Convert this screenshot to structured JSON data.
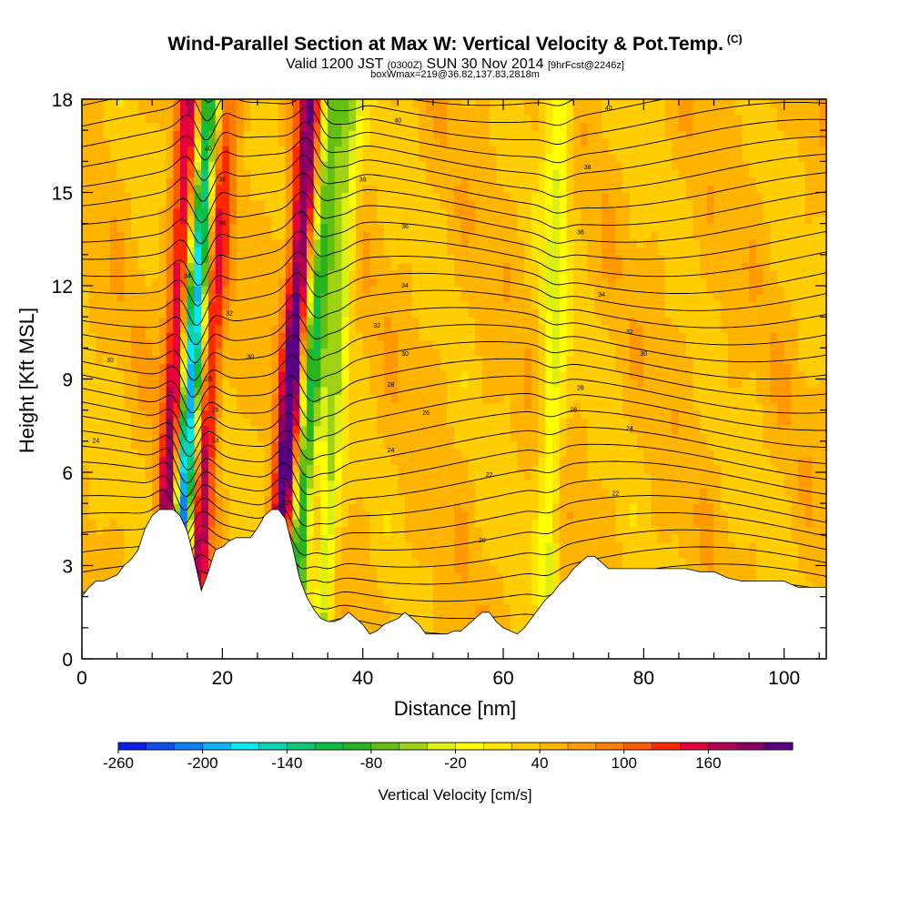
{
  "header": {
    "title": "Wind-Parallel Section at Max W: Vertical Velocity & Pot.Temp.",
    "copyright": "(C)",
    "valid_prefix": "Valid 1200 JST",
    "valid_utc": "(0300Z)",
    "valid_date": "SUN 30 Nov 2014",
    "forecast": "[9hrFcst@2246z]",
    "box_info": "boxWmax=219@36.82,137.83,2818m"
  },
  "chart_data": {
    "type": "heatmap",
    "xlabel": "Distance [nm]",
    "ylabel": "Height [Kft MSL]",
    "xlim": [
      0,
      106
    ],
    "ylim": [
      0,
      18
    ],
    "xticks": [
      0,
      20,
      40,
      60,
      80,
      100
    ],
    "yticks": [
      0,
      3,
      6,
      9,
      12,
      15,
      18
    ],
    "terrain_profile": {
      "x": [
        0,
        1,
        2,
        3,
        4,
        5,
        6,
        7,
        8,
        9,
        10,
        11,
        12,
        13,
        14,
        15,
        16,
        17,
        18,
        19,
        20,
        21,
        22,
        23,
        24,
        25,
        26,
        27,
        28,
        29,
        30,
        31,
        32,
        33,
        34,
        35,
        36,
        37,
        38,
        39,
        40,
        41,
        42,
        43,
        44,
        45,
        46,
        47,
        48,
        49,
        50,
        51,
        52,
        53,
        54,
        55,
        56,
        57,
        58,
        59,
        60,
        61,
        62,
        63,
        64,
        65,
        66,
        67,
        68,
        69,
        70,
        71,
        72,
        73,
        74,
        75,
        76,
        77,
        78,
        79,
        80,
        82,
        84,
        86,
        88,
        90,
        92,
        94,
        96,
        98,
        100,
        102,
        104,
        106
      ],
      "height": [
        2.0,
        2.3,
        2.5,
        2.5,
        2.6,
        2.7,
        3.0,
        3.2,
        3.5,
        4.2,
        4.6,
        4.8,
        4.8,
        4.8,
        4.6,
        4.1,
        3.2,
        2.2,
        2.8,
        3.5,
        3.6,
        3.8,
        3.9,
        3.9,
        3.9,
        4.2,
        4.6,
        4.8,
        4.8,
        4.5,
        3.6,
        2.6,
        2.0,
        1.6,
        1.3,
        1.2,
        1.2,
        1.3,
        1.5,
        1.3,
        1.1,
        0.8,
        0.9,
        1.1,
        1.2,
        1.3,
        1.5,
        1.3,
        1.1,
        0.8,
        0.8,
        0.8,
        0.8,
        0.9,
        0.9,
        1.1,
        1.3,
        1.5,
        1.5,
        1.2,
        1.0,
        0.9,
        0.8,
        1.0,
        1.3,
        1.6,
        1.9,
        2.1,
        2.4,
        2.6,
        2.9,
        3.1,
        3.3,
        3.3,
        3.1,
        2.9,
        2.9,
        2.9,
        2.9,
        2.9,
        2.9,
        2.9,
        2.9,
        2.9,
        2.8,
        2.8,
        2.6,
        2.5,
        2.5,
        2.5,
        2.5,
        2.3,
        2.3,
        2.3
      ],
      "units": "Kft MSL"
    },
    "vertical_velocity_plumes": [
      {
        "x_base": 11,
        "x_top": 16,
        "peak_cm_s": 160,
        "sign": "updraft"
      },
      {
        "x_base": 13,
        "x_top": 18,
        "peak_cm_s": -260,
        "sign": "downdraft"
      },
      {
        "x_base": 16,
        "x_top": 20,
        "peak_cm_s": 120,
        "sign": "updraft"
      },
      {
        "x_base": 27,
        "x_top": 33,
        "peak_cm_s": 180,
        "sign": "updraft"
      },
      {
        "x_base": 30,
        "x_top": 35,
        "peak_cm_s": -140,
        "sign": "downdraft"
      },
      {
        "x_base": 34,
        "x_top": 38,
        "peak_cm_s": -80,
        "sign": "downdraft"
      },
      {
        "x_base": 66,
        "x_top": 68,
        "peak_cm_s": -60,
        "sign": "downdraft"
      }
    ],
    "contour_labels": [
      {
        "text": "40",
        "x": 45,
        "y": 17.3
      },
      {
        "text": "40",
        "x": 75,
        "y": 17.7
      },
      {
        "text": "40",
        "x": 18,
        "y": 16.4
      },
      {
        "text": "38",
        "x": 20,
        "y": 15.4
      },
      {
        "text": "38",
        "x": 40,
        "y": 15.4
      },
      {
        "text": "38",
        "x": 72,
        "y": 15.8
      },
      {
        "text": "36",
        "x": 20,
        "y": 14.0
      },
      {
        "text": "36",
        "x": 46,
        "y": 13.9
      },
      {
        "text": "36",
        "x": 71,
        "y": 13.7
      },
      {
        "text": "34",
        "x": 15,
        "y": 12.3
      },
      {
        "text": "34",
        "x": 46,
        "y": 12.0
      },
      {
        "text": "34",
        "x": 74,
        "y": 11.7
      },
      {
        "text": "32",
        "x": 21,
        "y": 11.1
      },
      {
        "text": "32",
        "x": 42,
        "y": 10.7
      },
      {
        "text": "32",
        "x": 78,
        "y": 10.5
      },
      {
        "text": "30",
        "x": 4,
        "y": 9.6
      },
      {
        "text": "30",
        "x": 24,
        "y": 9.7
      },
      {
        "text": "30",
        "x": 46,
        "y": 9.8
      },
      {
        "text": "30",
        "x": 80,
        "y": 9.8
      },
      {
        "text": "28",
        "x": 18,
        "y": 9.0
      },
      {
        "text": "28",
        "x": 44,
        "y": 8.8
      },
      {
        "text": "28",
        "x": 71,
        "y": 8.7
      },
      {
        "text": "26",
        "x": 19,
        "y": 8.0
      },
      {
        "text": "26",
        "x": 49,
        "y": 7.9
      },
      {
        "text": "26",
        "x": 70,
        "y": 8.0
      },
      {
        "text": "24",
        "x": 2,
        "y": 7.0
      },
      {
        "text": "24",
        "x": 19,
        "y": 7.0
      },
      {
        "text": "24",
        "x": 44,
        "y": 6.7
      },
      {
        "text": "24",
        "x": 78,
        "y": 7.4
      },
      {
        "text": "22",
        "x": 58,
        "y": 5.9
      },
      {
        "text": "22",
        "x": 29,
        "y": 5.0
      },
      {
        "text": "22",
        "x": 76,
        "y": 5.3
      },
      {
        "text": "20",
        "x": 57,
        "y": 3.8
      }
    ]
  },
  "colorbar": {
    "title": "Vertical Velocity [cm/s]",
    "ticks": [
      "-260",
      "-200",
      "-140",
      "-80",
      "-20",
      "40",
      "100",
      "160"
    ],
    "colors": [
      "#0a1ee6",
      "#0a50f0",
      "#0a82f5",
      "#0ab4f5",
      "#0ae6f0",
      "#0ad2b4",
      "#0ac878",
      "#0abe46",
      "#28b41e",
      "#64be14",
      "#a0d214",
      "#dcf014",
      "#ffff00",
      "#ffe600",
      "#ffcd00",
      "#ffb400",
      "#ff9b00",
      "#ff7d00",
      "#ff5a00",
      "#ff2800",
      "#e6003c",
      "#b40050",
      "#8c0064",
      "#5a0082"
    ]
  }
}
